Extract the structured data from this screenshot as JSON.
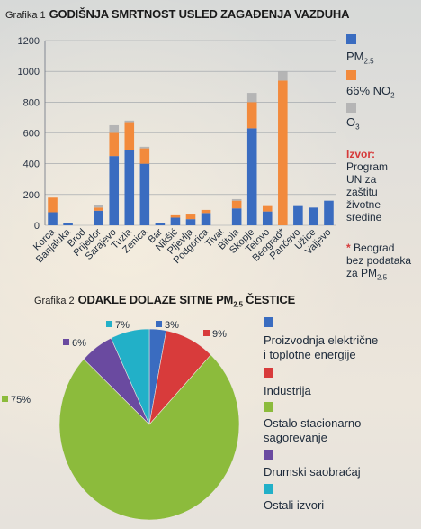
{
  "chart1": {
    "kicker": "Grafika 1",
    "title": "GODIŠNJA SMRTNOST USLED ZAGAĐENJA VAZDUHA",
    "legend": [
      {
        "label_main": "PM",
        "label_sub": "2.5",
        "color": "#3a6cc0"
      },
      {
        "label_main": "66% NO",
        "label_sub": "2",
        "color": "#f28a3c"
      },
      {
        "label_main": "O",
        "label_sub": "3",
        "color": "#b5b5b5"
      }
    ],
    "source_label": "Izvor:",
    "source_text": [
      "Program",
      "UN za",
      "zaštitu",
      "životne",
      "sredine"
    ],
    "footnote_star": "*",
    "footnote_text": [
      "Beograd",
      "bez podataka"
    ],
    "footnote_za": "za PM",
    "footnote_sub": "2.5"
  },
  "chart2": {
    "kicker": "Grafika 2",
    "title_pre": "ODAKLE DOLAZE SITNE PM",
    "title_sub": "2.5",
    "title_post": " ČESTICE",
    "legend": [
      {
        "lines": [
          "Proizvodnja električne",
          "i toplotne energije"
        ],
        "color": "#3a6cc0"
      },
      {
        "lines": [
          "Industrija"
        ],
        "color": "#d83b3b"
      },
      {
        "lines": [
          "Ostalo stacionarno",
          "sagorevanje"
        ],
        "color": "#8cbb3c"
      },
      {
        "lines": [
          "Drumski saobraćaj"
        ],
        "color": "#6a4aa0"
      },
      {
        "lines": [
          "Ostali izvori"
        ],
        "color": "#22b0c8"
      }
    ]
  },
  "chart_data": [
    {
      "type": "bar",
      "title": "GODIŠNJA SMRTNOST USLED ZAGAĐENJA VAZDUHA",
      "categories": [
        "Korca",
        "Banjaluka",
        "Brod",
        "Prijedor",
        "Sarajevo",
        "Tuzla",
        "Zenica",
        "Bar",
        "Nikšić",
        "Pljevlja",
        "Podgorica",
        "Tivat",
        "Bitola",
        "Skopje",
        "Tetovo",
        "Beograd*",
        "Pančevo",
        "Užice",
        "Valjevo"
      ],
      "stacked": true,
      "ylim": [
        0,
        1200
      ],
      "yticks": [
        0,
        200,
        400,
        600,
        800,
        1000,
        1200
      ],
      "grid": true,
      "legend_position": "right",
      "series": [
        {
          "name": "PM2.5",
          "color": "#3a6cc0",
          "values": [
            85,
            15,
            0,
            95,
            450,
            490,
            400,
            15,
            50,
            40,
            80,
            0,
            110,
            630,
            90,
            0,
            125,
            115,
            160
          ]
        },
        {
          "name": "66% NO2",
          "color": "#f28a3c",
          "values": [
            95,
            0,
            0,
            20,
            150,
            180,
            100,
            0,
            15,
            30,
            20,
            0,
            50,
            170,
            35,
            940,
            0,
            0,
            0
          ]
        },
        {
          "name": "O3",
          "color": "#b5b5b5",
          "values": [
            0,
            0,
            0,
            15,
            50,
            10,
            10,
            0,
            0,
            0,
            0,
            0,
            10,
            60,
            0,
            60,
            0,
            0,
            0
          ]
        }
      ]
    },
    {
      "type": "pie",
      "title": "ODAKLE DOLAZE SITNE PM2.5 ČESTICE",
      "legend_position": "right",
      "slices": [
        {
          "name": "Proizvodnja električne i toplotne energije",
          "value": 3,
          "label": "3%",
          "color": "#3a6cc0"
        },
        {
          "name": "Industrija",
          "value": 9,
          "label": "9%",
          "color": "#d83b3b"
        },
        {
          "name": "Ostalo stacionarno sagorevanje",
          "value": 75,
          "label": "75%",
          "color": "#8cbb3c"
        },
        {
          "name": "Drumski saobraćaj",
          "value": 6,
          "label": "6%",
          "color": "#6a4aa0"
        },
        {
          "name": "Ostali izvori",
          "value": 7,
          "label": "7%",
          "color": "#22b0c8"
        }
      ]
    }
  ]
}
